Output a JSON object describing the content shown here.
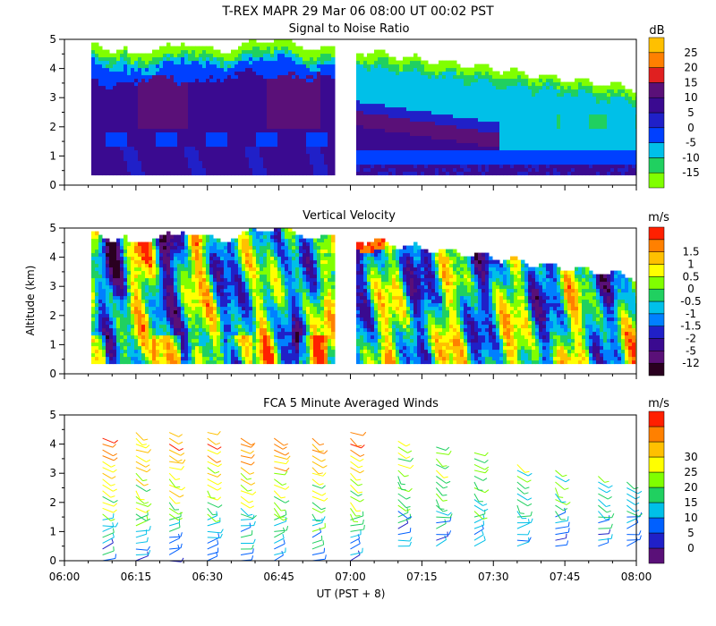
{
  "figure_title": "T-REX   MAPR 29 Mar 06   08:00 UT   00:02   PST",
  "colors": {
    "scale_snr": [
      "#80ff00",
      "#20d060",
      "#00c0e8",
      "#0040ff",
      "#2020c8",
      "#3a0a90",
      "#5a1078",
      "#e02020",
      "#ff8000",
      "#ffc000"
    ],
    "scale_vel": [
      "#2a0020",
      "#5a1078",
      "#3a0a90",
      "#2020c8",
      "#0080ff",
      "#00c0e8",
      "#20d060",
      "#80ff00",
      "#ffff00",
      "#ffc000",
      "#ff8000",
      "#ff2000"
    ],
    "scale_wind": [
      "#5a1078",
      "#2020c8",
      "#0060ff",
      "#00c0e8",
      "#20d060",
      "#80ff00",
      "#ffff00",
      "#ffc000",
      "#ff8000",
      "#ff2000"
    ]
  },
  "chart_data": [
    {
      "type": "heatmap",
      "title": "Signal to Noise Ratio",
      "xlabel": "",
      "ylabel": "",
      "x_range": [
        "06:00",
        "08:00"
      ],
      "ylim": [
        0,
        5
      ],
      "yticks": [
        "0",
        "1",
        "2",
        "3",
        "4",
        "5"
      ],
      "colorbar_unit": "dB",
      "colorbar_labels": [
        "-15",
        "-10",
        "-5",
        "0",
        "5",
        "10",
        "15",
        "20",
        "25"
      ],
      "data_gap": [
        "06:57",
        "07:01"
      ]
    },
    {
      "type": "heatmap",
      "title": "Vertical Velocity",
      "xlabel": "",
      "ylabel": "Altitude (km)",
      "x_range": [
        "06:00",
        "08:00"
      ],
      "ylim": [
        0,
        5
      ],
      "yticks": [
        "0",
        "1",
        "2",
        "3",
        "4",
        "5"
      ],
      "colorbar_unit": "m/s",
      "colorbar_labels": [
        "-12",
        "-5",
        "-2",
        "-1.5",
        "-1",
        "-0.5",
        "0",
        "0.5",
        "1",
        "1.5"
      ],
      "data_gap": [
        "06:57",
        "07:01"
      ]
    },
    {
      "type": "scatter",
      "title": "FCA 5 Minute Averaged Winds",
      "xlabel": "UT  (PST + 8)",
      "ylabel": "",
      "x_range": [
        "06:00",
        "08:00"
      ],
      "xticks": [
        "06:00",
        "06:15",
        "06:30",
        "06:45",
        "07:00",
        "07:15",
        "07:30",
        "07:45",
        "08:00"
      ],
      "ylim": [
        0,
        5
      ],
      "yticks": [
        "0",
        "1",
        "2",
        "3",
        "4",
        "5"
      ],
      "colorbar_unit": "m/s",
      "colorbar_labels": [
        "0",
        "5",
        "10",
        "15",
        "20",
        "25",
        "30"
      ],
      "wind_times_min": [
        8,
        15,
        22,
        30,
        37,
        44,
        52,
        60,
        70,
        78,
        86,
        95,
        103,
        112,
        118
      ]
    }
  ]
}
